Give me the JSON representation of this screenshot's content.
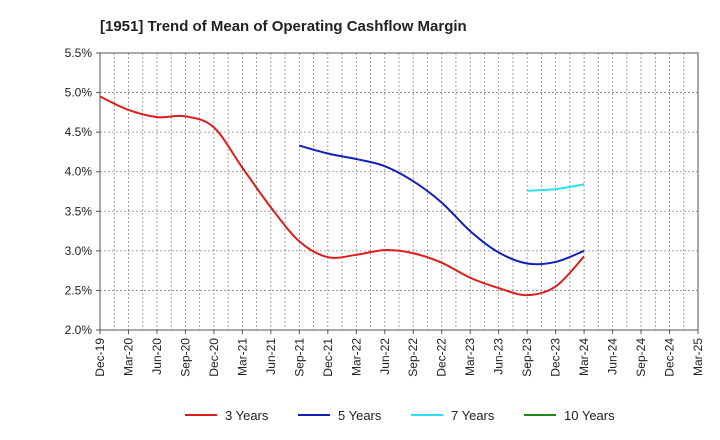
{
  "chart_data": {
    "type": "line",
    "title": "[1951]  Trend of Mean of Operating Cashflow Margin",
    "xlabel": "",
    "ylabel": "",
    "ylim": [
      2.0,
      5.5
    ],
    "y_ticks": [
      "2.0%",
      "2.5%",
      "3.0%",
      "3.5%",
      "4.0%",
      "4.5%",
      "5.0%",
      "5.5%"
    ],
    "categories": [
      "Dec-19",
      "Mar-20",
      "Jun-20",
      "Sep-20",
      "Dec-20",
      "Mar-21",
      "Jun-21",
      "Sep-21",
      "Dec-21",
      "Mar-22",
      "Jun-22",
      "Sep-22",
      "Dec-22",
      "Mar-23",
      "Jun-23",
      "Sep-23",
      "Dec-23",
      "Mar-24",
      "Jun-24",
      "Sep-24",
      "Dec-24",
      "Mar-25"
    ],
    "grid": true,
    "legend_position": "bottom",
    "series": [
      {
        "name": "3 Years",
        "color": "#dd1c1c",
        "values": [
          4.95,
          4.78,
          4.69,
          4.7,
          4.56,
          4.05,
          3.55,
          3.12,
          2.92,
          2.95,
          3.01,
          2.97,
          2.85,
          2.66,
          2.53,
          2.44,
          2.55,
          2.93,
          null,
          null,
          null,
          null
        ]
      },
      {
        "name": "5 Years",
        "color": "#1220b8",
        "values": [
          null,
          null,
          null,
          null,
          null,
          null,
          null,
          4.33,
          4.23,
          4.16,
          4.07,
          3.88,
          3.61,
          3.25,
          2.98,
          2.84,
          2.86,
          3.0,
          null,
          null,
          null,
          null
        ]
      },
      {
        "name": "7 Years",
        "color": "#2be3f0",
        "values": [
          null,
          null,
          null,
          null,
          null,
          null,
          null,
          null,
          null,
          null,
          null,
          null,
          null,
          null,
          null,
          3.76,
          3.78,
          3.84,
          null,
          null,
          null,
          null
        ]
      },
      {
        "name": "10 Years",
        "color": "#1e8a1e",
        "values": [
          null,
          null,
          null,
          null,
          null,
          null,
          null,
          null,
          null,
          null,
          null,
          null,
          null,
          null,
          null,
          null,
          null,
          null,
          null,
          null,
          null,
          null
        ]
      }
    ]
  }
}
